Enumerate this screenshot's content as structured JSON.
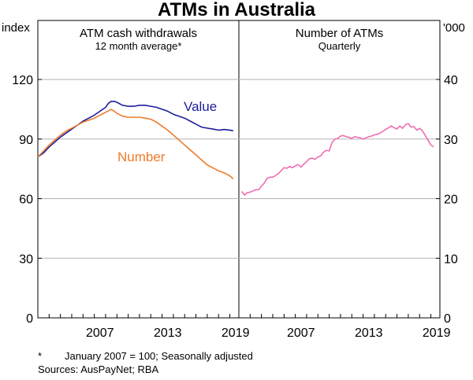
{
  "title": "ATMs in Australia",
  "footnotes": {
    "marker": "*",
    "note": "January 2007 = 100; Seasonally adjusted",
    "sources": "Sources: AusPayNet; RBA"
  },
  "chart_data": [
    {
      "type": "line",
      "panel": "left",
      "title": "ATM cash withdrawals",
      "subtitle": "12 month average*",
      "ylabel": "index",
      "ylim": [
        0,
        120
      ],
      "yticks": [
        0,
        30,
        60,
        90,
        120
      ],
      "xlim": [
        2002.0,
        2019.8
      ],
      "xticks": [
        2007,
        2013,
        2019
      ],
      "grid": true,
      "colors": {
        "Value": "#1c1c9c",
        "Number": "#f07a2a"
      },
      "series": [
        {
          "name": "Value",
          "label_position": "right of line",
          "x": [
            2002.0,
            2002.5,
            2003.0,
            2003.5,
            2004.0,
            2004.5,
            2005.0,
            2005.5,
            2006.0,
            2006.5,
            2007.0,
            2007.5,
            2008.0,
            2008.25,
            2008.5,
            2008.75,
            2009.0,
            2009.5,
            2010.0,
            2010.5,
            2011.0,
            2011.5,
            2012.0,
            2012.5,
            2013.0,
            2013.5,
            2014.0,
            2014.5,
            2015.0,
            2015.5,
            2016.0,
            2016.5,
            2017.0,
            2017.5,
            2018.0,
            2018.5,
            2019.0,
            2019.3
          ],
          "values": [
            81,
            83,
            86,
            88.5,
            91,
            93,
            95,
            97,
            99,
            100.5,
            102,
            104,
            106,
            108,
            109,
            109,
            108.5,
            107,
            106.5,
            106.5,
            107,
            107,
            106.5,
            106,
            105,
            104,
            102.5,
            101.5,
            100.5,
            99,
            97.5,
            96,
            95.5,
            95,
            94.5,
            94.8,
            94.5,
            94.2
          ]
        },
        {
          "name": "Number",
          "label_position": "below line",
          "x": [
            2002.0,
            2002.5,
            2003.0,
            2003.5,
            2004.0,
            2004.5,
            2005.0,
            2005.5,
            2006.0,
            2006.5,
            2007.0,
            2007.5,
            2008.0,
            2008.5,
            2009.0,
            2009.5,
            2010.0,
            2010.5,
            2011.0,
            2011.5,
            2012.0,
            2012.5,
            2013.0,
            2013.5,
            2014.0,
            2014.5,
            2015.0,
            2015.5,
            2016.0,
            2016.5,
            2017.0,
            2017.5,
            2018.0,
            2018.5,
            2019.0,
            2019.3
          ],
          "values": [
            81,
            84,
            87,
            89.5,
            92,
            94,
            95.5,
            97,
            98.5,
            99.5,
            100.5,
            102,
            103.5,
            105,
            103,
            101.5,
            101,
            101,
            101,
            100.5,
            100,
            98.5,
            96.5,
            94.5,
            92,
            89.5,
            87,
            84.5,
            82,
            79.5,
            77,
            75.5,
            74,
            73,
            71.5,
            70
          ]
        }
      ]
    },
    {
      "type": "line",
      "panel": "right",
      "title": "Number of ATMs",
      "subtitle": "Quarterly",
      "ylabel": "'000",
      "ylim": [
        0,
        40
      ],
      "yticks": [
        0,
        10,
        20,
        30,
        40
      ],
      "xlim": [
        2002.0,
        2019.8
      ],
      "xticks": [
        2007,
        2013,
        2019
      ],
      "grid": true,
      "colors": {
        "ATMs": "#f06eb4"
      },
      "series": [
        {
          "name": "",
          "x": [
            2002.25,
            2002.5,
            2002.75,
            2003.0,
            2003.25,
            2003.5,
            2003.75,
            2004.0,
            2004.25,
            2004.5,
            2004.75,
            2005.0,
            2005.25,
            2005.5,
            2005.75,
            2006.0,
            2006.25,
            2006.5,
            2006.75,
            2007.0,
            2007.25,
            2007.5,
            2007.75,
            2008.0,
            2008.25,
            2008.5,
            2008.75,
            2009.0,
            2009.25,
            2009.5,
            2009.75,
            2010.0,
            2010.25,
            2010.5,
            2010.75,
            2011.0,
            2011.25,
            2011.5,
            2011.75,
            2012.0,
            2012.25,
            2012.5,
            2012.75,
            2013.0,
            2013.25,
            2013.5,
            2013.75,
            2014.0,
            2014.25,
            2014.5,
            2014.75,
            2015.0,
            2015.25,
            2015.5,
            2015.75,
            2016.0,
            2016.25,
            2016.5,
            2016.75,
            2017.0,
            2017.25,
            2017.5,
            2017.75,
            2018.0,
            2018.25,
            2018.5,
            2018.75,
            2019.0,
            2019.25
          ],
          "values": [
            21.2,
            20.6,
            21.0,
            21.1,
            21.3,
            21.5,
            21.5,
            22.1,
            22.6,
            23.4,
            23.6,
            23.6,
            23.9,
            24.2,
            24.7,
            25.2,
            25.1,
            25.4,
            25.2,
            25.5,
            25.7,
            25.3,
            25.8,
            26.2,
            26.7,
            26.8,
            26.6,
            27.0,
            27.2,
            27.8,
            28.1,
            28.0,
            29.4,
            30.0,
            30.1,
            30.5,
            30.6,
            30.4,
            30.3,
            30.1,
            30.4,
            30.3,
            30.2,
            30.0,
            30.2,
            30.4,
            30.5,
            30.7,
            30.8,
            31.0,
            31.3,
            31.6,
            31.9,
            32.2,
            31.9,
            31.7,
            32.2,
            31.8,
            32.4,
            32.6,
            32.0,
            32.1,
            31.5,
            31.8,
            31.4,
            30.6,
            29.8,
            29.0,
            28.7
          ]
        }
      ]
    }
  ]
}
